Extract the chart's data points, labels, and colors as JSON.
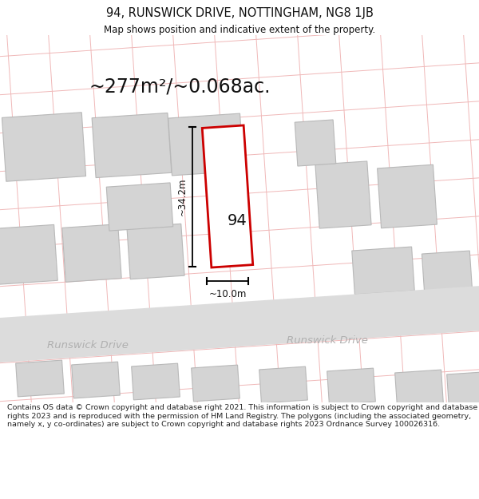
{
  "title": "94, RUNSWICK DRIVE, NOTTINGHAM, NG8 1JB",
  "subtitle": "Map shows position and indicative extent of the property.",
  "area_text": "~277m²/~0.068ac.",
  "label_94": "94",
  "label_width": "~10.0m",
  "label_height": "~34.2m",
  "road_name_left": "Runswick Drive",
  "road_name_right": "Runswick Drive",
  "footer": "Contains OS data © Crown copyright and database right 2021. This information is subject to Crown copyright and database rights 2023 and is reproduced with the permission of HM Land Registry. The polygons (including the associated geometry, namely x, y co-ordinates) are subject to Crown copyright and database rights 2023 Ordnance Survey 100026316.",
  "bg_color": "#ffffff",
  "map_bg": "#f9f5f5",
  "road_color": "#dcdcdc",
  "grid_line_color": "#f0b8b8",
  "building_color": "#d4d4d4",
  "building_edge": "#b8b8b8",
  "property_fill": "#ffffff",
  "property_edge": "#cc0000",
  "road_label_color": "#b0b0b0",
  "text_color": "#111111",
  "footer_color": "#222222",
  "title_fontsize": 10.5,
  "subtitle_fontsize": 8.5,
  "area_fontsize": 17,
  "road_fontsize": 9.5,
  "label_fontsize": 14,
  "meas_fontsize": 8.5,
  "footer_fontsize": 6.8
}
